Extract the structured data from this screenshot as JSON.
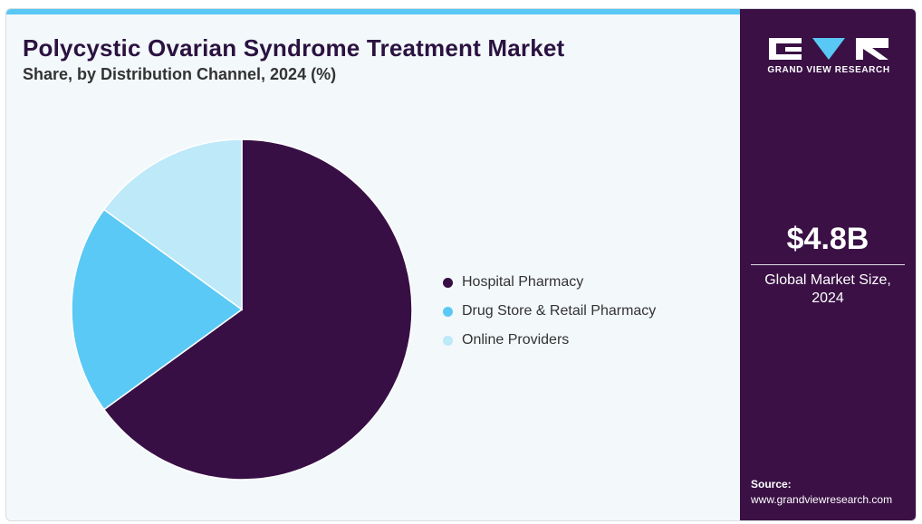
{
  "colors": {
    "accent_bar": "#5ac8f5",
    "sidebar_bg": "#3a1045",
    "title": "#2b1240"
  },
  "chart_data": {
    "type": "pie",
    "title": "Polycystic Ovarian Syndrome Treatment Market",
    "subtitle": "Share, by Distribution Channel, 2024 (%)",
    "legend_position": "right",
    "series": [
      {
        "name": "Hospital Pharmacy",
        "value": 65.0,
        "color": "#370f45"
      },
      {
        "name": "Drug Store & Retail Pharmacy",
        "value": 20.0,
        "color": "#5bc9f5"
      },
      {
        "name": "Online Providers",
        "value": 15.0,
        "color": "#bde9f9"
      }
    ]
  },
  "sidebar": {
    "logo_text": "GRAND VIEW RESEARCH",
    "market_value": "$4.8B",
    "market_label_line1": "Global Market Size,",
    "market_label_line2": "2024",
    "source_label": "Source:",
    "source_url": "www.grandviewresearch.com"
  }
}
